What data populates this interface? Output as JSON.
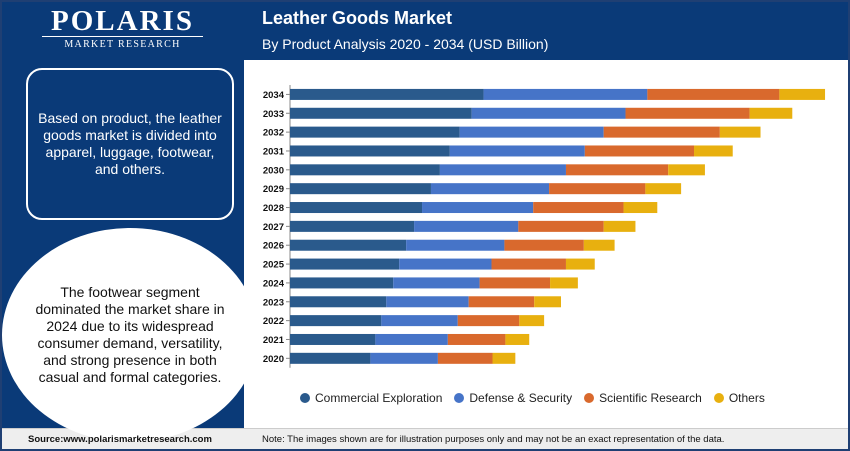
{
  "brand": {
    "name": "POLARIS",
    "tagline": "MARKET RESEARCH"
  },
  "header": {
    "title": "Leather Goods Market",
    "subtitle": "By Product Analysis 2020 - 2034 (USD Billion)"
  },
  "left_panel": {
    "box_text": "Based on product, the leather goods market is divided into apparel, luggage, footwear, and others.",
    "circle_text": "The footwear segment dominated the market share in 2024 due to its widespread consumer demand, versatility,  and strong presence in both casual and formal categories."
  },
  "footer": {
    "source": "Source:www.polarismarketresearch.com",
    "note": "Note: The images shown are for illustration purposes only and may not be an exact representation of the data."
  },
  "colors": {
    "series": [
      "#2a5a8c",
      "#4674c8",
      "#d9692d",
      "#e8b00f"
    ],
    "dark_blue": "#0a3a78"
  },
  "chart_data": {
    "type": "bar",
    "orientation": "horizontal",
    "stacked": true,
    "categories": [
      "2034",
      "2033",
      "2032",
      "2031",
      "2030",
      "2029",
      "2028",
      "2027",
      "2026",
      "2025",
      "2024",
      "2023",
      "2022",
      "2021",
      "2020"
    ],
    "series": [
      {
        "name": "Commercial Exploration",
        "values": [
          195,
          183,
          171,
          161,
          151,
          142,
          133,
          125,
          117,
          110,
          104,
          97,
          92,
          86,
          81
        ]
      },
      {
        "name": "Defense & Security",
        "values": [
          165,
          155,
          145,
          136,
          127,
          119,
          112,
          105,
          99,
          93,
          87,
          83,
          77,
          73,
          68
        ]
      },
      {
        "name": "Scientific Research",
        "values": [
          133,
          125,
          117,
          110,
          103,
          97,
          91,
          86,
          80,
          75,
          71,
          66,
          62,
          58,
          55
        ]
      },
      {
        "name": "Others",
        "values": [
          46,
          43,
          41,
          39,
          37,
          36,
          34,
          32,
          31,
          29,
          28,
          27,
          25,
          24,
          23
        ]
      }
    ],
    "legend_position": "bottom",
    "grid": false,
    "xlim": [
      0,
      545
    ]
  }
}
